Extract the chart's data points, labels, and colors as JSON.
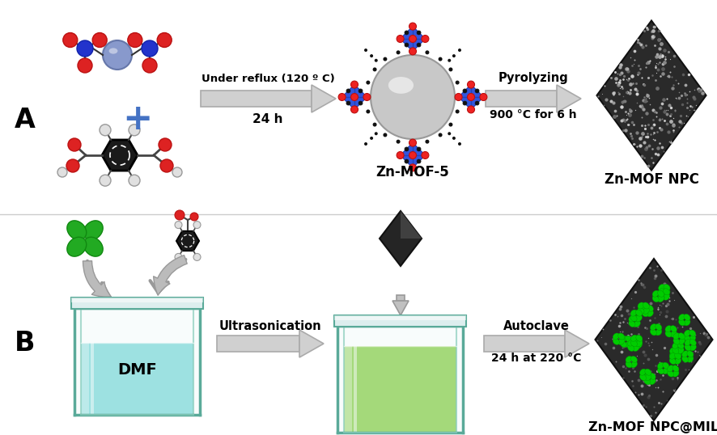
{
  "background_color": "#ffffff",
  "label_A": "A",
  "label_B": "B",
  "text_arrow1_top": "Under reflux (120 º C)",
  "text_arrow1_bottom": "24 h",
  "text_arrow2_top": "Pyrolyzing",
  "text_arrow2_bottom": "900 °C for 6 h",
  "text_arrow3": "Ultrasonication",
  "text_arrow4_top": "Autoclave",
  "text_arrow4_bottom": "24 h at 220 °C",
  "label_znmof5": "Zn-MOF-5",
  "label_znmofnpc": "Zn-MOF NPC",
  "label_znmofnpc_mil": "Zn-MOF NPC@MIL",
  "label_dmf": "DMF",
  "plus_color": "#4472c4",
  "text_color": "#000000",
  "beaker_liquid_cyan": "#7dd8d8",
  "beaker_liquid_green": "#88cc44"
}
